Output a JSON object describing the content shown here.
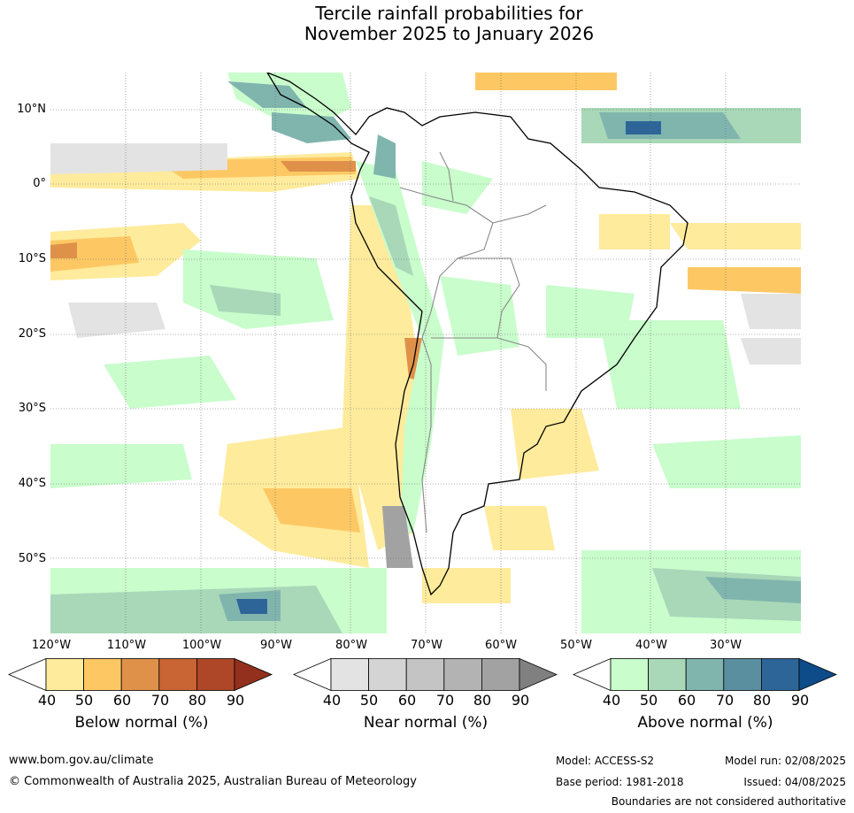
{
  "title": {
    "line1": "Tercile rainfall probabilities for",
    "line2": "November 2025 to January 2026"
  },
  "map": {
    "lat_labels": [
      "10°N",
      "0°",
      "10°S",
      "20°S",
      "30°S",
      "40°S",
      "50°S"
    ],
    "lon_labels": [
      "120°W",
      "110°W",
      "100°W",
      "90°W",
      "80°W",
      "70°W",
      "60°W",
      "50°W",
      "40°W",
      "30°W"
    ],
    "extent": {
      "lon_min": -120,
      "lon_max": -20,
      "lat_min": -60,
      "lat_max": 15
    },
    "gridlines": true
  },
  "colorbars": [
    {
      "name": "below",
      "title": "Below normal (%)",
      "ticks": [
        "40",
        "50",
        "60",
        "70",
        "80",
        "90"
      ],
      "colors": [
        "#ffffff",
        "#feeb9c",
        "#fdc864",
        "#df914a",
        "#c96434",
        "#ad4728",
        "#93301d"
      ]
    },
    {
      "name": "near",
      "title": "Near normal (%)",
      "ticks": [
        "40",
        "50",
        "60",
        "70",
        "80",
        "90"
      ],
      "colors": [
        "#ffffff",
        "#e3e3e3",
        "#d4d4d4",
        "#c4c4c4",
        "#b3b3b3",
        "#a2a2a2",
        "#808080"
      ]
    },
    {
      "name": "above",
      "title": "Above normal (%)",
      "ticks": [
        "40",
        "50",
        "60",
        "70",
        "80",
        "90"
      ],
      "colors": [
        "#ffffff",
        "#c9fdcc",
        "#a8d8b8",
        "#80b5ae",
        "#5a8fa0",
        "#2e6598",
        "#0d4c89"
      ]
    }
  ],
  "footer": {
    "website": "www.bom.gov.au/climate",
    "copyright": "© Commonwealth of Australia 2025, Australian Bureau of Meteorology",
    "model": "Model: ACCESS-S2",
    "base_period": "Base period: 1981-2018",
    "model_run": "Model run: 02/08/2025",
    "issued": "Issued: 04/08/2025",
    "disclaimer": "Boundaries are not considered authoritative"
  }
}
